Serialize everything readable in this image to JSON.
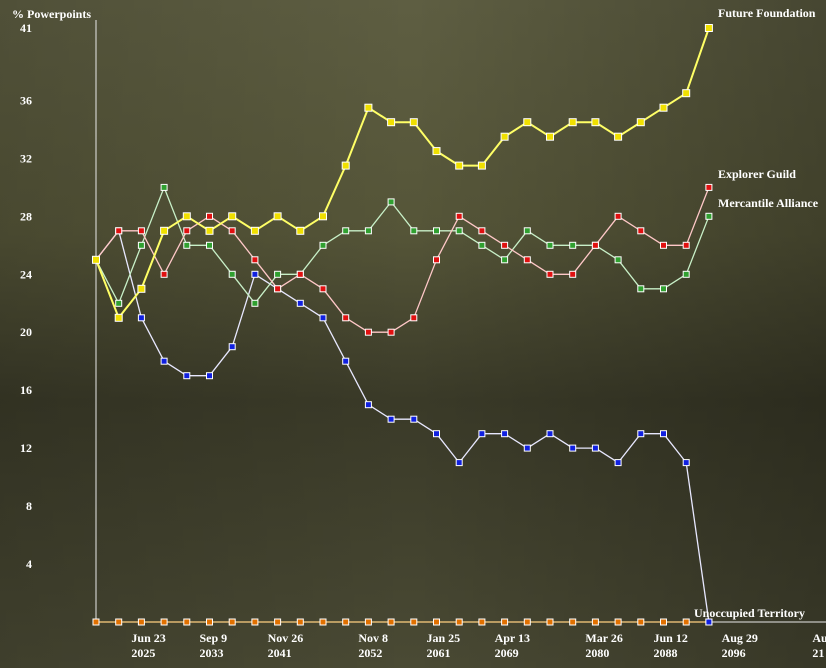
{
  "chart_data": {
    "type": "line",
    "ylabel": "% Powerpoints",
    "ylim": [
      0,
      41
    ],
    "yticks": [
      4,
      8,
      12,
      16,
      20,
      24,
      28,
      32,
      36,
      41
    ],
    "x_tick_labels": [
      {
        "index": 2,
        "line1": "Jun 23",
        "line2": "2025"
      },
      {
        "index": 5,
        "line1": "Sep 9",
        "line2": "2033"
      },
      {
        "index": 8,
        "line1": "Nov 26",
        "line2": "2041"
      },
      {
        "index": 12,
        "line1": "Nov 8",
        "line2": "2052"
      },
      {
        "index": 15,
        "line1": "Jan 25",
        "line2": "2061"
      },
      {
        "index": 18,
        "line1": "Apr 13",
        "line2": "2069"
      },
      {
        "index": 22,
        "line1": "Mar 26",
        "line2": "2080"
      },
      {
        "index": 25,
        "line1": "Jun 12",
        "line2": "2088"
      },
      {
        "index": 28,
        "line1": "Aug 29",
        "line2": "2096"
      },
      {
        "index": 32,
        "line1": "Au",
        "line2": "21"
      }
    ],
    "grid": false,
    "legend": "labels at line ends (right)",
    "series": [
      {
        "name": "Future Foundation",
        "color": "#ffff66",
        "marker": "#f0e000",
        "width": 2,
        "values": [
          25,
          21,
          23,
          27,
          28,
          27,
          28,
          27,
          28,
          27,
          28,
          31.5,
          35.5,
          34.5,
          34.5,
          32.5,
          31.5,
          31.5,
          33.5,
          34.5,
          33.5,
          34.5,
          34.5,
          33.5,
          34.5,
          35.5,
          36.5,
          41
        ]
      },
      {
        "name": "Explorer Guild",
        "color": "#ffc8c8",
        "marker": "#e01010",
        "width": 1.3,
        "values": [
          25,
          27,
          27,
          24,
          27,
          28,
          27,
          25,
          23,
          24,
          23,
          21,
          20,
          20,
          21,
          25,
          28,
          27,
          26,
          25,
          24,
          24,
          26,
          28,
          27,
          26,
          26,
          30
        ]
      },
      {
        "name": "Mercantile Alliance",
        "color": "#c8f0c8",
        "marker": "#30a030",
        "width": 1.3,
        "values": [
          25,
          22,
          26,
          30,
          26,
          26,
          24,
          22,
          24,
          24,
          26,
          27,
          27,
          29,
          27,
          27,
          27,
          26,
          25,
          27,
          26,
          26,
          26,
          25,
          23,
          23,
          24,
          28
        ]
      },
      {
        "name": "",
        "color": "#e8e8ff",
        "marker": "#1020e0",
        "width": 1.3,
        "values": [
          25,
          27,
          21,
          18,
          17,
          17,
          19,
          24,
          23,
          22,
          21,
          18,
          15,
          14,
          14,
          13,
          11,
          13,
          13,
          12,
          13,
          12,
          12,
          11,
          13,
          13,
          11,
          0
        ]
      },
      {
        "name": "Unoccupied Territory",
        "color": "#ffd080",
        "marker": "#e07000",
        "width": 1.3,
        "values": [
          0,
          0,
          0,
          0,
          0,
          0,
          0,
          0,
          0,
          0,
          0,
          0,
          0,
          0,
          0,
          0,
          0,
          0,
          0,
          0,
          0,
          0,
          0,
          0,
          0,
          0,
          0,
          0
        ]
      }
    ]
  },
  "colors": {
    "background_light": "#6e6e50",
    "background_dark": "#2a2a1e",
    "axis": "#e8e8e8"
  }
}
